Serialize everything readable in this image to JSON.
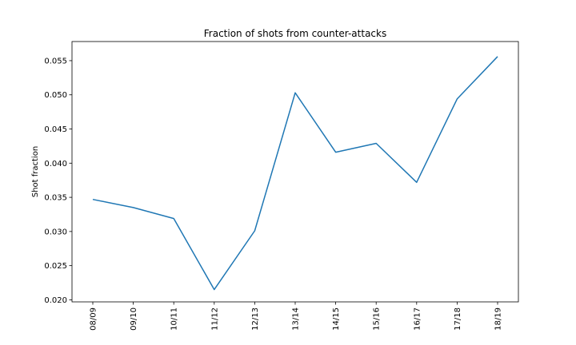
{
  "chart_data": {
    "type": "line",
    "title": "Fraction of shots from counter-attacks",
    "xlabel": "",
    "ylabel": "Shot fraction",
    "categories": [
      "08/09",
      "09/10",
      "10/11",
      "11/12",
      "12/13",
      "13/14",
      "14/15",
      "15/16",
      "16/17",
      "17/18",
      "18/19"
    ],
    "series": [
      {
        "values": [
          0.0347,
          0.0335,
          0.0319,
          0.0215,
          0.0301,
          0.0503,
          0.0416,
          0.0429,
          0.0372,
          0.0494,
          0.0556
        ]
      }
    ],
    "yticks": [
      "0.020",
      "0.025",
      "0.030",
      "0.035",
      "0.040",
      "0.045",
      "0.050",
      "0.055"
    ],
    "ylim": [
      0.0197,
      0.0578
    ],
    "grid": false,
    "line_color": "#1f77b4"
  }
}
